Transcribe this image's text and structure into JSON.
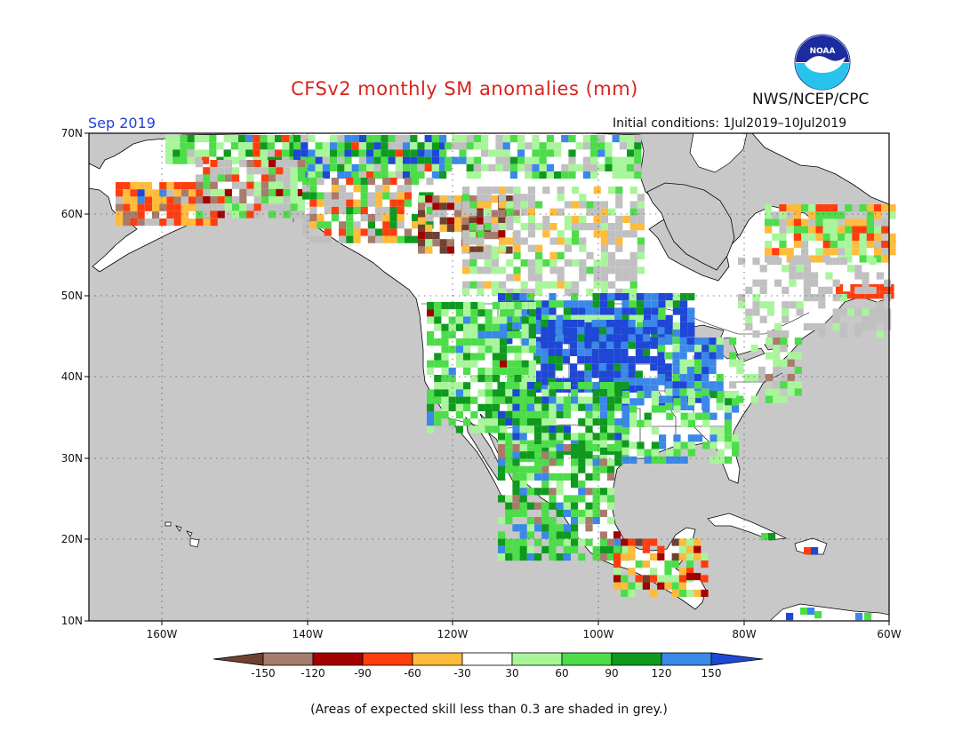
{
  "header": {
    "title": "CFSv2 monthly SM anomalies (mm)",
    "org": "NWS/NCEP/CPC",
    "logo_text": "NOAA",
    "period": "Sep 2019",
    "initial_conditions": "Initial conditions: 1Jul2019–10Jul2019"
  },
  "map": {
    "region": "North America",
    "lat_labels": [
      "70N",
      "60N",
      "50N",
      "40N",
      "30N",
      "20N",
      "10N"
    ],
    "lon_labels": [
      "160W",
      "140W",
      "120W",
      "100W",
      "80W",
      "60W"
    ],
    "lat_range": [
      10,
      70
    ],
    "lon_range": [
      -170,
      -60
    ],
    "grid": true,
    "colors": {
      "ocean": "#c8c8c8",
      "land": "#ffffff",
      "low_skill": "#c0c0c0",
      "coast": "#000000"
    }
  },
  "legend": {
    "labels": [
      "-150",
      "-120",
      "-90",
      "-60",
      "-30",
      "30",
      "60",
      "90",
      "120",
      "150"
    ],
    "colors": [
      "#6e4131",
      "#a77c6c",
      "#a30000",
      "#ff3d0f",
      "#ffbb3a",
      "#ffffff",
      "#a8f59a",
      "#4ddc4a",
      "#0f9a1f",
      "#3a88e8",
      "#1f47d6"
    ]
  },
  "note": "(Areas of expected skill less than 0.3 are shaded in grey.)"
}
